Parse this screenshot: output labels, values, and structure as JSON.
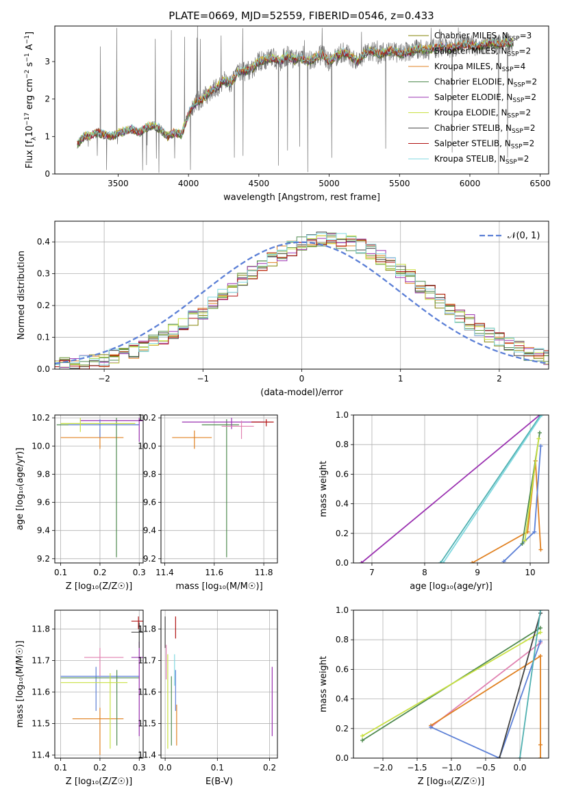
{
  "figure": {
    "title": "PLATE=0669, MJD=52559, FIBERID=0546, z=0.433"
  },
  "legend_series": [
    {
      "name": "Chabrier MILES, N",
      "sub": "SSP",
      "tail": "=3",
      "color": "#808000"
    },
    {
      "name": "Salpeter MILES, N",
      "sub": "SSP",
      "tail": "=2",
      "color": "#6a9a3a"
    },
    {
      "name": "Kroupa MILES, N",
      "sub": "SSP",
      "tail": "=4",
      "color": "#e08020"
    },
    {
      "name": "Chabrier ELODIE, N",
      "sub": "SSP",
      "tail": "=2",
      "color": "#4f8a4f"
    },
    {
      "name": "Salpeter ELODIE, N",
      "sub": "SSP",
      "tail": "=2",
      "color": "#9a30b0"
    },
    {
      "name": "Kroupa ELODIE, N",
      "sub": "SSP",
      "tail": "=2",
      "color": "#c8e040"
    },
    {
      "name": "Chabrier STELIB, N",
      "sub": "SSP",
      "tail": "=2",
      "color": "#404040"
    },
    {
      "name": "Salpeter STELIB, N",
      "sub": "SSP",
      "tail": "=2",
      "color": "#b01010"
    },
    {
      "name": "Kroupa STELIB, N",
      "sub": "SSP",
      "tail": "=2",
      "color": "#80d8e0"
    }
  ],
  "chart_data": [
    {
      "type": "line",
      "id": "spectrum",
      "xlabel": "wavelength [Angstrom, rest frame]",
      "ylabel_pre": "Flux [f",
      "ylabel_sub": "λ",
      "ylabel_mid": "10",
      "ylabel_sup": "−17",
      "ylabel_post": " erg cm",
      "ylabel_sup2": "−2",
      "ylabel_mid2": " s",
      "ylabel_sup3": "−1",
      "ylabel_mid3": " A",
      "ylabel_sup4": "−1",
      "ylabel_end": "]",
      "xlim": [
        3050,
        6560
      ],
      "ylim": [
        0,
        3.95
      ],
      "xticks": [
        3500,
        4000,
        4500,
        5000,
        5500,
        6000,
        6500
      ],
      "yticks": [
        0,
        1,
        2,
        3
      ],
      "data_color": "#707070",
      "continuum": [
        [
          3210,
          0.8
        ],
        [
          3260,
          1.02
        ],
        [
          3300,
          1.0
        ],
        [
          3350,
          1.12
        ],
        [
          3400,
          1.05
        ],
        [
          3450,
          1.0
        ],
        [
          3500,
          1.08
        ],
        [
          3560,
          1.15
        ],
        [
          3600,
          1.2
        ],
        [
          3650,
          1.1
        ],
        [
          3700,
          1.25
        ],
        [
          3750,
          1.3
        ],
        [
          3800,
          1.2
        ],
        [
          3850,
          1.0
        ],
        [
          3900,
          1.1
        ],
        [
          3950,
          1.05
        ],
        [
          4000,
          1.6
        ],
        [
          4050,
          1.9
        ],
        [
          4100,
          2.0
        ],
        [
          4150,
          2.2
        ],
        [
          4200,
          2.3
        ],
        [
          4250,
          2.5
        ],
        [
          4300,
          2.4
        ],
        [
          4350,
          2.7
        ],
        [
          4400,
          2.75
        ],
        [
          4450,
          2.8
        ],
        [
          4500,
          3.0
        ],
        [
          4550,
          3.05
        ],
        [
          4600,
          3.1
        ],
        [
          4650,
          3.0
        ],
        [
          4700,
          3.15
        ],
        [
          4750,
          3.05
        ],
        [
          4800,
          3.1
        ],
        [
          4850,
          3.0
        ],
        [
          4900,
          3.1
        ],
        [
          4950,
          3.2
        ],
        [
          5000,
          3.0
        ],
        [
          5050,
          3.15
        ],
        [
          5100,
          3.25
        ],
        [
          5150,
          3.15
        ],
        [
          5200,
          3.0
        ],
        [
          5250,
          3.2
        ],
        [
          5300,
          3.3
        ],
        [
          5350,
          3.2
        ],
        [
          5400,
          3.25
        ],
        [
          5450,
          3.3
        ],
        [
          5500,
          3.2
        ],
        [
          5550,
          3.25
        ],
        [
          5600,
          3.3
        ],
        [
          5650,
          3.35
        ],
        [
          5700,
          3.3
        ],
        [
          5750,
          3.35
        ],
        [
          5800,
          3.4
        ],
        [
          5850,
          3.35
        ],
        [
          5900,
          3.4
        ],
        [
          5950,
          3.45
        ],
        [
          6000,
          3.45
        ],
        [
          6050,
          3.4
        ],
        [
          6100,
          3.45
        ],
        [
          6150,
          3.5
        ],
        [
          6200,
          3.45
        ],
        [
          6250,
          3.5
        ],
        [
          6300,
          3.5
        ]
      ]
    },
    {
      "type": "histogram",
      "id": "residuals",
      "xlabel": "(data-model)/error",
      "ylabel": "Normed distribution",
      "xlim": [
        -2.5,
        2.5
      ],
      "ylim": [
        0,
        0.465
      ],
      "xticks": [
        -2,
        -1,
        0,
        1,
        2
      ],
      "xtick_labels": [
        "−2",
        "−1",
        "0",
        "1",
        "2"
      ],
      "yticks": [
        0,
        0.1,
        0.2,
        0.3,
        0.4
      ],
      "ytick_labels": [
        "0.0",
        "0.1",
        "0.2",
        "0.3",
        "0.4"
      ],
      "gaussian_label": "𝒩(0, 1)",
      "gaussian_color": "#5b7fd6"
    },
    {
      "type": "scatter",
      "id": "age_vs_Z",
      "xlabel": "Z [log₁₀(Z/Z☉)]",
      "ylabel": "age  [log₁₀(age/yr)]",
      "xlim": [
        0.085,
        0.31
      ],
      "ylim": [
        9.17,
        10.22
      ],
      "xticks": [
        0.1,
        0.2,
        0.3
      ],
      "xtick_labels": [
        "0.1",
        "0.2",
        "0.3"
      ],
      "yticks": [
        9.2,
        9.4,
        9.6,
        9.8,
        10.0,
        10.2
      ],
      "ytick_labels": [
        "9.2",
        "9.4",
        "9.6",
        "9.8",
        "10.0",
        "10.2"
      ],
      "points": [
        {
          "x": 0.2,
          "y": 10.06,
          "xerr": [
            0.1,
            0.26
          ],
          "yerr": [
            9.98,
            10.12
          ],
          "color": "#e08020"
        },
        {
          "x": 0.242,
          "y": 10.15,
          "xerr": [
            0.09,
            0.3
          ],
          "yerr": [
            9.21,
            10.2
          ],
          "color": "#4f8a4f"
        },
        {
          "x": 0.3,
          "y": 10.18,
          "xerr": [
            0.15,
            0.31
          ],
          "yerr": [
            10.03,
            10.2
          ],
          "color": "#9a30b0"
        },
        {
          "x": 0.2,
          "y": 10.15,
          "xerr": [
            0.12,
            0.3
          ],
          "yerr": [
            10.06,
            10.19
          ],
          "color": "#5b7fd6"
        },
        {
          "x": 0.15,
          "y": 10.16,
          "xerr": [
            0.1,
            0.29
          ],
          "yerr": [
            10.1,
            10.2
          ],
          "color": "#c8e040"
        }
      ]
    },
    {
      "type": "scatter",
      "id": "age_vs_mass",
      "xlabel": "mass [log₁₀(M/M☉)]",
      "ylabel": "",
      "xlim": [
        11.385,
        11.855
      ],
      "ylim": [
        9.17,
        10.22
      ],
      "xticks": [
        11.4,
        11.6,
        11.8
      ],
      "xtick_labels": [
        "11.4",
        "11.6",
        "11.8"
      ],
      "yticks": [
        9.2,
        9.4,
        9.6,
        9.8,
        10.0,
        10.2
      ],
      "ytick_labels": [
        "9.2",
        "9.4",
        "9.6",
        "9.8",
        "10.0",
        "10.2"
      ],
      "points": [
        {
          "x": 11.52,
          "y": 10.06,
          "xerr": [
            11.43,
            11.59
          ],
          "yerr": [
            9.98,
            10.11
          ],
          "color": "#e08020"
        },
        {
          "x": 11.65,
          "y": 10.15,
          "xerr": [
            11.55,
            11.7
          ],
          "yerr": [
            9.21,
            10.19
          ],
          "color": "#4f8a4f"
        },
        {
          "x": 11.67,
          "y": 10.17,
          "xerr": [
            11.47,
            11.8
          ],
          "yerr": [
            10.12,
            10.2
          ],
          "color": "#9a30b0"
        },
        {
          "x": 11.71,
          "y": 10.14,
          "xerr": [
            11.63,
            11.76
          ],
          "yerr": [
            10.05,
            10.18
          ],
          "color": "#e080b0"
        },
        {
          "x": 11.81,
          "y": 10.17,
          "xerr": [
            11.75,
            11.84
          ],
          "yerr": [
            10.14,
            10.19
          ],
          "color": "#b01010"
        }
      ]
    },
    {
      "type": "line",
      "id": "weight_vs_age",
      "xlabel": "age  [log₁₀(age/yr)]",
      "ylabel": "mass weight",
      "xlim": [
        6.65,
        10.35
      ],
      "ylim": [
        0,
        1
      ],
      "xticks": [
        7,
        8,
        9,
        10
      ],
      "xtick_labels": [
        "7",
        "8",
        "9",
        "10"
      ],
      "yticks": [
        0,
        0.2,
        0.4,
        0.6,
        0.8,
        1.0
      ],
      "ytick_labels": [
        "0.0",
        "0.2",
        "0.4",
        "0.6",
        "0.8",
        "1.0"
      ],
      "series": [
        {
          "color": "#9a30b0",
          "points": [
            [
              6.8,
              0
            ],
            [
              10.18,
              1
            ]
          ]
        },
        {
          "color": "#4fb0b0",
          "points": [
            [
              8.3,
              0
            ],
            [
              10.2,
              1
            ]
          ]
        },
        {
          "color": "#80d8e0",
          "points": [
            [
              8.35,
              0
            ],
            [
              10.22,
              1
            ]
          ]
        },
        {
          "color": "#e08020",
          "points": [
            [
              8.9,
              0
            ],
            [
              9.95,
              0.21
            ],
            [
              10.1,
              0.69
            ],
            [
              10.2,
              0.09
            ]
          ]
        },
        {
          "color": "#5b7fd6",
          "points": [
            [
              9.5,
              0.01
            ],
            [
              10.08,
              0.21
            ],
            [
              10.2,
              0.79
            ]
          ]
        },
        {
          "color": "#4f8a4f",
          "points": [
            [
              9.85,
              0.13
            ],
            [
              10.18,
              0.88
            ]
          ]
        },
        {
          "color": "#c8e040",
          "points": [
            [
              9.9,
              0.15
            ],
            [
              10.16,
              0.84
            ]
          ]
        }
      ]
    },
    {
      "type": "scatter",
      "id": "mass_vs_Z",
      "xlabel": "Z [log₁₀(Z/Z☉)]",
      "ylabel": "mass [log₁₀(M/M☉)]",
      "xlim": [
        0.085,
        0.31
      ],
      "ylim": [
        11.39,
        11.86
      ],
      "xticks": [
        0.1,
        0.2,
        0.3
      ],
      "xtick_labels": [
        "0.1",
        "0.2",
        "0.3"
      ],
      "yticks": [
        11.4,
        11.5,
        11.6,
        11.7,
        11.8
      ],
      "ytick_labels": [
        "11.4",
        "11.5",
        "11.6",
        "11.7",
        "11.8"
      ],
      "points": [
        {
          "x": 0.2,
          "y": 11.515,
          "xerr": [
            0.13,
            0.26
          ],
          "yerr": [
            11.4,
            11.55
          ],
          "color": "#e08020"
        },
        {
          "x": 0.19,
          "y": 11.65,
          "xerr": [
            0.1,
            0.3
          ],
          "yerr": [
            11.54,
            11.68
          ],
          "color": "#5b7fd6"
        },
        {
          "x": 0.243,
          "y": 11.645,
          "xerr": [
            0.1,
            0.3
          ],
          "yerr": [
            11.43,
            11.67
          ],
          "color": "#4f8a4f"
        },
        {
          "x": 0.226,
          "y": 11.63,
          "xerr": [
            0.1,
            0.27
          ],
          "yerr": [
            11.42,
            11.66
          ],
          "color": "#c8e040"
        },
        {
          "x": 0.2,
          "y": 11.71,
          "xerr": [
            0.16,
            0.26
          ],
          "yerr": [
            11.65,
            11.74
          ],
          "color": "#e080b0"
        },
        {
          "x": 0.3,
          "y": 11.71,
          "xerr": [
            0.28,
            0.31
          ],
          "yerr": [
            11.46,
            11.76
          ],
          "color": "#9a30b0"
        },
        {
          "x": 0.298,
          "y": 11.825,
          "xerr": [
            0.28,
            0.31
          ],
          "yerr": [
            11.8,
            11.84
          ],
          "color": "#b01010"
        },
        {
          "x": 0.3,
          "y": 11.79,
          "xerr": [
            0.28,
            0.31
          ],
          "yerr": [
            11.74,
            11.82
          ],
          "color": "#404040"
        }
      ]
    },
    {
      "type": "scatter",
      "id": "mass_vs_EBV",
      "xlabel": "E(B-V)",
      "ylabel": "",
      "xlim": [
        -0.008,
        0.215
      ],
      "ylim": [
        11.39,
        11.86
      ],
      "xticks": [
        0.0,
        0.1,
        0.2
      ],
      "xtick_labels": [
        "0.0",
        "0.1",
        "0.2"
      ],
      "yticks": [
        11.4,
        11.5,
        11.6,
        11.7,
        11.8
      ],
      "ytick_labels": [
        "11.4",
        "11.5",
        "11.6",
        "11.7",
        "11.8"
      ],
      "points": [
        {
          "x": 0.0,
          "y": 11.79,
          "xerr": [
            0,
            0
          ],
          "yerr": [
            11.74,
            11.84
          ],
          "color": "#404040"
        },
        {
          "x": 0.002,
          "y": 11.69,
          "xerr": [
            0,
            0
          ],
          "yerr": [
            11.64,
            11.75
          ],
          "color": "#e080b0"
        },
        {
          "x": 0.005,
          "y": 11.6,
          "xerr": [
            0,
            0
          ],
          "yerr": [
            11.42,
            11.72
          ],
          "color": "#c8e040"
        },
        {
          "x": 0.012,
          "y": 11.55,
          "xerr": [
            0,
            0
          ],
          "yerr": [
            11.43,
            11.65
          ],
          "color": "#4f8a4f"
        },
        {
          "x": 0.018,
          "y": 11.67,
          "xerr": [
            0,
            0
          ],
          "yerr": [
            11.62,
            11.72
          ],
          "color": "#80d8e0"
        },
        {
          "x": 0.02,
          "y": 11.62,
          "xerr": [
            0,
            0
          ],
          "yerr": [
            11.54,
            11.67
          ],
          "color": "#5b7fd6"
        },
        {
          "x": 0.022,
          "y": 11.49,
          "xerr": [
            0,
            0
          ],
          "yerr": [
            11.43,
            11.56
          ],
          "color": "#e08020"
        },
        {
          "x": 0.02,
          "y": 11.8,
          "xerr": [
            0,
            0
          ],
          "yerr": [
            11.77,
            11.84
          ],
          "color": "#b01010"
        },
        {
          "x": 0.205,
          "y": 11.56,
          "xerr": [
            0,
            0
          ],
          "yerr": [
            11.46,
            11.68
          ],
          "color": "#9a30b0"
        }
      ]
    },
    {
      "type": "line",
      "id": "weight_vs_Z",
      "xlabel": "Z [log₁₀(Z/Z☉)]",
      "ylabel": "mass weight",
      "xlim": [
        -2.43,
        0.42
      ],
      "ylim": [
        0,
        1
      ],
      "xticks": [
        -2.0,
        -1.5,
        -1.0,
        -0.5,
        0.0
      ],
      "xtick_labels": [
        "−2.0",
        "−1.5",
        "−1.0",
        "−0.5",
        "0.0"
      ],
      "yticks": [
        0,
        0.2,
        0.4,
        0.6,
        0.8,
        1.0
      ],
      "ytick_labels": [
        "0.0",
        "0.2",
        "0.4",
        "0.6",
        "0.8",
        "1.0"
      ],
      "series": [
        {
          "color": "#4f8a4f",
          "points": [
            [
              -2.3,
              0.12
            ],
            [
              0.3,
              0.88
            ]
          ]
        },
        {
          "color": "#c8e040",
          "points": [
            [
              -2.3,
              0.15
            ],
            [
              0.3,
              0.85
            ]
          ]
        },
        {
          "color": "#e080b0",
          "points": [
            [
              -1.3,
              0.21
            ],
            [
              0.3,
              0.78
            ]
          ]
        },
        {
          "color": "#e08020",
          "points": [
            [
              -1.3,
              0.22
            ],
            [
              0.3,
              0.69
            ],
            [
              0.3,
              0.09
            ],
            [
              0.3,
              0.0
            ]
          ]
        },
        {
          "color": "#5b7fd6",
          "points": [
            [
              -1.3,
              0.21
            ],
            [
              -0.3,
              0.0
            ],
            [
              0.3,
              0.79
            ]
          ]
        },
        {
          "color": "#404040",
          "points": [
            [
              -0.3,
              0.0
            ],
            [
              0.3,
              0.98
            ]
          ]
        },
        {
          "color": "#4fb0b0",
          "points": [
            [
              0.0,
              0.0
            ],
            [
              0.3,
              1.0
            ]
          ]
        }
      ]
    }
  ]
}
